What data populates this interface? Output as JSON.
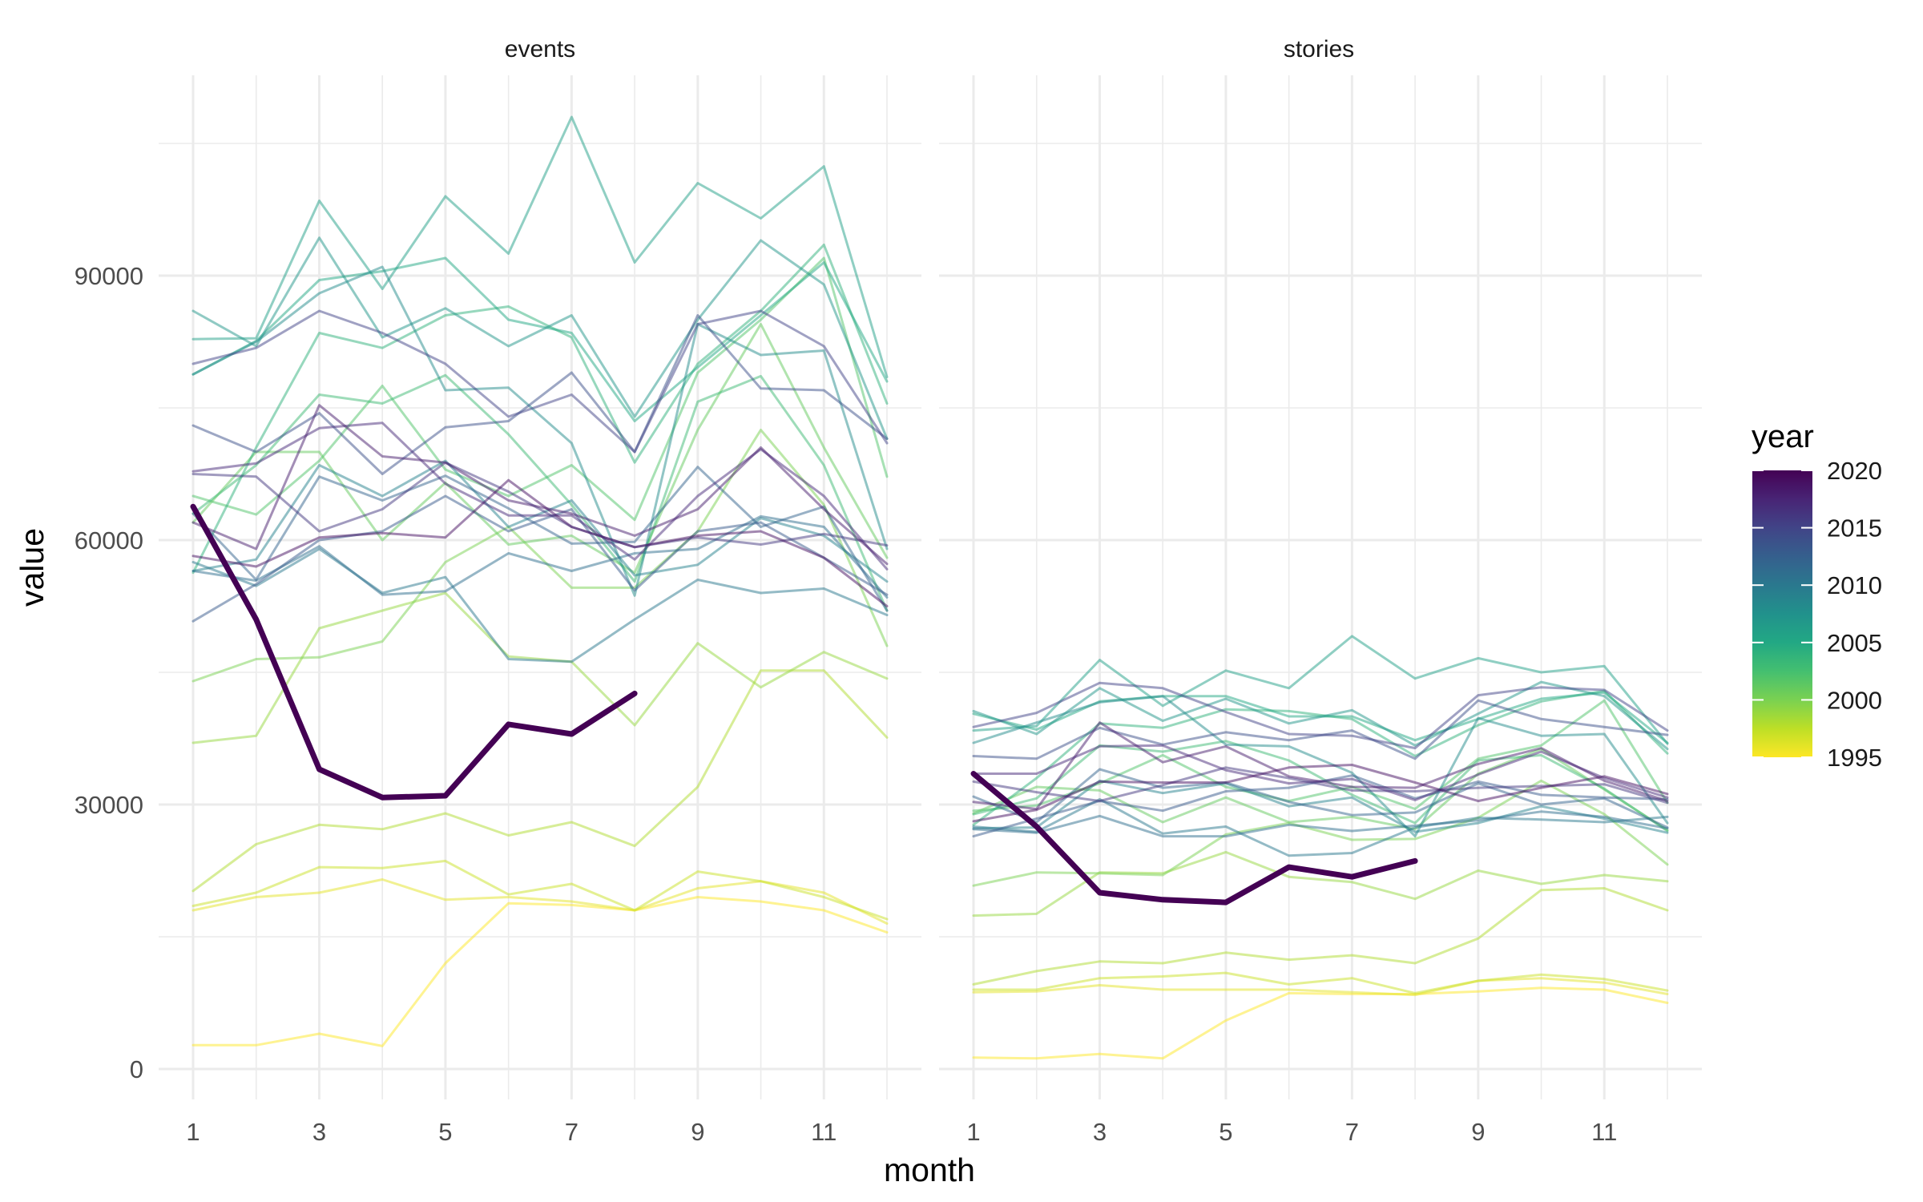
{
  "chart_data": {
    "type": "line",
    "x_label": "month",
    "y_label": "value",
    "x_ticks": [
      1,
      3,
      5,
      7,
      9,
      11
    ],
    "y_ticks": [
      0,
      30000,
      60000,
      90000
    ],
    "x_range": [
      1,
      12
    ],
    "y_range": [
      0,
      108000
    ],
    "grid": true,
    "legend": {
      "title": "year",
      "position": "right",
      "scale": "viridis-reversed",
      "range": [
        1995,
        2020
      ],
      "ticks": [
        1995,
        2000,
        2005,
        2010,
        2015,
        2020
      ]
    },
    "highlight_year": 2020,
    "panels": [
      {
        "title": "events",
        "series": [
          {
            "year": 1995,
            "values": [
              2700,
              2700,
              4000,
              2600,
              12000,
              18800,
              18600,
              18000,
              19500,
              19000,
              18000,
              15500
            ]
          },
          {
            "year": 1996,
            "values": [
              18000,
              19500,
              20000,
              21500,
              19200,
              19500,
              19000,
              18000,
              20500,
              21300,
              20000,
              16500
            ]
          },
          {
            "year": 1997,
            "values": [
              18500,
              20000,
              22900,
              22800,
              23600,
              19800,
              21000,
              18000,
              22400,
              21300,
              19500,
              17000
            ]
          },
          {
            "year": 1998,
            "values": [
              20200,
              25500,
              27700,
              27200,
              29000,
              26500,
              28000,
              25300,
              32000,
              45200,
              45200,
              37600
            ]
          },
          {
            "year": 1999,
            "values": [
              37000,
              37800,
              50000,
              52000,
              54000,
              46800,
              46200,
              39000,
              48300,
              43300,
              47300,
              44300
            ]
          },
          {
            "year": 2000,
            "values": [
              44000,
              46500,
              46700,
              48500,
              57500,
              61500,
              54600,
              54600,
              61000,
              72500,
              64000,
              48000
            ]
          },
          {
            "year": 2001,
            "values": [
              62000,
              70000,
              70000,
              60000,
              66500,
              59500,
              60500,
              56300,
              72500,
              84500,
              70500,
              58000
            ]
          },
          {
            "year": 2002,
            "values": [
              65000,
              62900,
              69000,
              77500,
              68000,
              65000,
              68500,
              62300,
              79000,
              85000,
              92000,
              67200
            ]
          },
          {
            "year": 2003,
            "values": [
              63000,
              68500,
              76500,
              75500,
              78700,
              72000,
              64000,
              55300,
              75700,
              78600,
              68500,
              52000
            ]
          },
          {
            "year": 2004,
            "values": [
              56300,
              70500,
              83500,
              81800,
              85500,
              86500,
              83000,
              68800,
              80000,
              86000,
              93500,
              75500
            ]
          },
          {
            "year": 2005,
            "values": [
              78800,
              82600,
              89500,
              90500,
              92000,
              85000,
              83500,
              73500,
              79600,
              85500,
              91500,
              78000
            ]
          },
          {
            "year": 2006,
            "values": [
              82800,
              82900,
              98500,
              88500,
              99000,
              92500,
              108000,
              91500,
              100500,
              96500,
              102400,
              78500
            ]
          },
          {
            "year": 2007,
            "values": [
              86000,
              82000,
              94300,
              83000,
              86300,
              82000,
              85500,
              74000,
              85000,
              94000,
              89000,
              71500
            ]
          },
          {
            "year": 2008,
            "values": [
              78800,
              82500,
              88000,
              91000,
              77000,
              77300,
              71000,
              53700,
              84500,
              81000,
              81500,
              59000
            ]
          },
          {
            "year": 2009,
            "values": [
              56500,
              57800,
              68500,
              65000,
              69000,
              61500,
              64500,
              56000,
              57200,
              62500,
              60500,
              55300
            ]
          },
          {
            "year": 2010,
            "values": [
              57500,
              54800,
              59000,
              54000,
              55800,
              46500,
              46200,
              51000,
              55500,
              54000,
              54500,
              51500
            ]
          },
          {
            "year": 2011,
            "values": [
              56500,
              55400,
              59300,
              53800,
              54200,
              58500,
              56500,
              58500,
              59000,
              62700,
              61500,
              53500
            ]
          },
          {
            "year": 2012,
            "values": [
              63000,
              55500,
              67200,
              64500,
              67300,
              63600,
              59600,
              59800,
              68300,
              61500,
              63800,
              52000
            ]
          },
          {
            "year": 2013,
            "values": [
              50800,
              55000,
              60000,
              61000,
              65000,
              61000,
              63500,
              54300,
              61000,
              62000,
              58000,
              53800
            ]
          },
          {
            "year": 2014,
            "values": [
              73000,
              70000,
              74400,
              67500,
              72800,
              73500,
              79000,
              70000,
              85500,
              77200,
              77000,
              71500
            ]
          },
          {
            "year": 2015,
            "values": [
              80000,
              81800,
              86000,
              83500,
              80000,
              74000,
              76500,
              70000,
              84500,
              86000,
              82000,
              71000
            ]
          },
          {
            "year": 2016,
            "values": [
              67500,
              67200,
              61000,
              63500,
              68800,
              65500,
              61500,
              59200,
              60300,
              59500,
              60700,
              59400
            ]
          },
          {
            "year": 2017,
            "values": [
              67800,
              68700,
              72700,
              73300,
              66400,
              62800,
              62800,
              57800,
              65000,
              70300,
              65000,
              56700
            ]
          },
          {
            "year": 2018,
            "values": [
              62000,
              59000,
              75300,
              69500,
              68800,
              64500,
              63000,
              60500,
              63500,
              70500,
              63500,
              57300
            ]
          },
          {
            "year": 2019,
            "values": [
              58200,
              57000,
              60300,
              60800,
              60300,
              66800,
              61500,
              59200,
              60500,
              61000,
              58000,
              52500
            ]
          },
          {
            "year": 2020,
            "values": [
              63800,
              51000,
              34000,
              30800,
              31000,
              39100,
              38000,
              42600
            ]
          }
        ]
      },
      {
        "title": "stories",
        "series": [
          {
            "year": 1995,
            "values": [
              1300,
              1200,
              1700,
              1200,
              5500,
              8600,
              8500,
              8500,
              8800,
              9200,
              9000,
              7500
            ]
          },
          {
            "year": 1996,
            "values": [
              8700,
              8800,
              9500,
              9000,
              9000,
              9000,
              8700,
              8400,
              10000,
              10300,
              9800,
              8500
            ]
          },
          {
            "year": 1997,
            "values": [
              9000,
              9000,
              10300,
              10500,
              10900,
              9600,
              10300,
              8600,
              10000,
              10700,
              10200,
              8900
            ]
          },
          {
            "year": 1998,
            "values": [
              9600,
              11100,
              12200,
              12000,
              13200,
              12400,
              12900,
              12000,
              14800,
              20300,
              20500,
              18000
            ]
          },
          {
            "year": 1999,
            "values": [
              17400,
              17600,
              22300,
              22200,
              24600,
              21800,
              21200,
              19300,
              22500,
              21000,
              22000,
              21300
            ]
          },
          {
            "year": 2000,
            "values": [
              20800,
              22300,
              22200,
              22000,
              26600,
              27900,
              26000,
              26100,
              28500,
              32700,
              28900,
              23200
            ]
          },
          {
            "year": 2001,
            "values": [
              29000,
              32000,
              31600,
              28000,
              30800,
              28000,
              28600,
              27200,
              33500,
              36300,
              31700,
              27100
            ]
          },
          {
            "year": 2002,
            "values": [
              29300,
              29900,
              32400,
              35600,
              32000,
              30400,
              32000,
              29500,
              35200,
              36700,
              41800,
              30200
            ]
          },
          {
            "year": 2003,
            "values": [
              28900,
              30700,
              36700,
              36000,
              37200,
              35000,
              31100,
              27900,
              35000,
              35600,
              31800,
              27000
            ]
          },
          {
            "year": 2004,
            "values": [
              27700,
              33000,
              39200,
              38700,
              40800,
              40600,
              39700,
              35500,
              39000,
              41700,
              42900,
              35800
            ]
          },
          {
            "year": 2005,
            "values": [
              40300,
              38500,
              41700,
              42300,
              42300,
              40000,
              40000,
              37300,
              39700,
              42000,
              42700,
              37000
            ]
          },
          {
            "year": 2006,
            "values": [
              38400,
              38900,
              46400,
              41200,
              45200,
              43200,
              49100,
              44300,
              46600,
              45000,
              45700,
              36900
            ]
          },
          {
            "year": 2007,
            "values": [
              40600,
              38000,
              43200,
              39500,
              42000,
              39200,
              40700,
              36700,
              40300,
              43900,
              42300,
              36300
            ]
          },
          {
            "year": 2008,
            "values": [
              37000,
              39300,
              41600,
              42300,
              36800,
              36600,
              33600,
              26400,
              39800,
              37800,
              38000,
              27900
            ]
          },
          {
            "year": 2009,
            "values": [
              27300,
              27400,
              32700,
              31300,
              32400,
              29800,
              30800,
              26900,
              27900,
              29800,
              28400,
              26800
            ]
          },
          {
            "year": 2010,
            "values": [
              27500,
              26900,
              30600,
              26700,
              27500,
              24200,
              24500,
              27400,
              28500,
              28300,
              28000,
              28600
            ]
          },
          {
            "year": 2011,
            "values": [
              27200,
              26800,
              28700,
              26400,
              26400,
              27700,
              27000,
              27600,
              28200,
              29200,
              28600,
              27300
            ]
          },
          {
            "year": 2012,
            "values": [
              30900,
              28000,
              34000,
              31900,
              32500,
              30300,
              28800,
              29100,
              32400,
              30000,
              30700,
              27400
            ]
          },
          {
            "year": 2013,
            "values": [
              26400,
              28400,
              30400,
              29300,
              31500,
              31900,
              33300,
              30700,
              32600,
              31100,
              30800,
              30600
            ]
          },
          {
            "year": 2014,
            "values": [
              35500,
              35200,
              38700,
              36800,
              38200,
              37300,
              38400,
              35200,
              41800,
              39700,
              38800,
              37900
            ]
          },
          {
            "year": 2015,
            "values": [
              38800,
              40400,
              43800,
              43200,
              40500,
              38000,
              37800,
              36400,
              42400,
              43300,
              43000,
              38400
            ]
          },
          {
            "year": 2016,
            "values": [
              32600,
              31400,
              30400,
              32200,
              34200,
              33000,
              31600,
              31500,
              31900,
              32100,
              32300,
              30200
            ]
          },
          {
            "year": 2017,
            "values": [
              33500,
              33500,
              36600,
              36700,
              33900,
              32400,
              32900,
              30500,
              33400,
              36000,
              33000,
              30800
            ]
          },
          {
            "year": 2018,
            "values": [
              30300,
              29500,
              39300,
              34800,
              36600,
              33200,
              32000,
              31900,
              34600,
              36400,
              32700,
              30400
            ]
          },
          {
            "year": 2019,
            "values": [
              28100,
              29400,
              32600,
              32500,
              32500,
              34200,
              34500,
              32500,
              30400,
              31900,
              33200,
              31200
            ]
          },
          {
            "year": 2020,
            "values": [
              33500,
              27500,
              20000,
              19200,
              18900,
              22900,
              21800,
              23600
            ]
          }
        ]
      }
    ]
  }
}
